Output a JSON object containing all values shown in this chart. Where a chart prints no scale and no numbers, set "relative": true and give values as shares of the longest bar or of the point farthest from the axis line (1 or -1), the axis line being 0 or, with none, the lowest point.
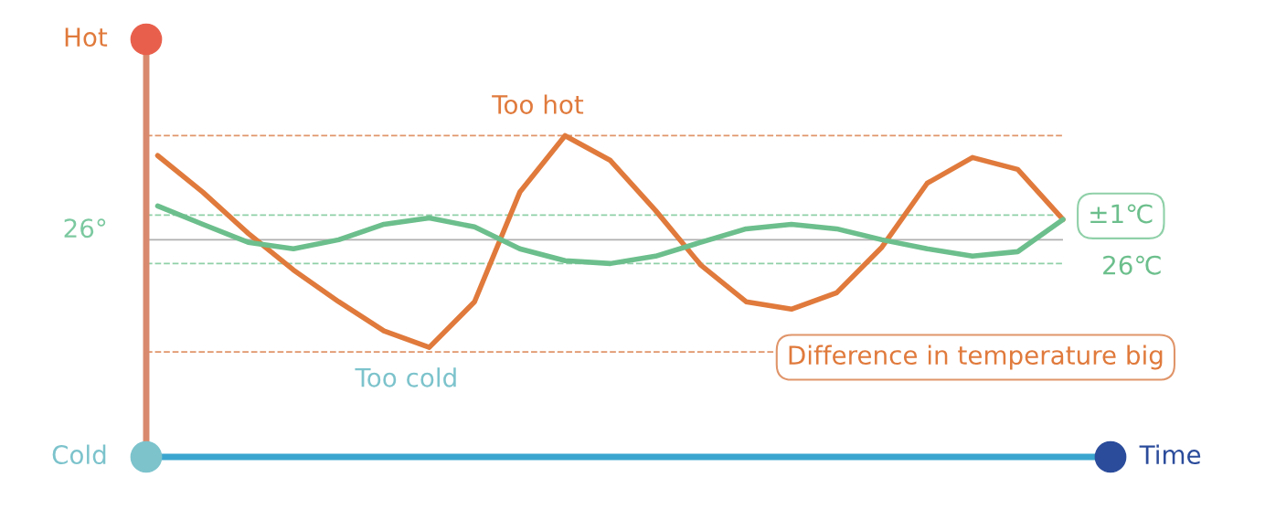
{
  "chart_data": {
    "type": "line",
    "relative": true,
    "categories": [
      null,
      null,
      null,
      null,
      null,
      null,
      null,
      null,
      null,
      null,
      null,
      null,
      null,
      null,
      null,
      null,
      null,
      null,
      null,
      null,
      null
    ],
    "series": [
      {
        "color": "#e07a3c",
        "values": [
          0.938,
          0.824,
          0.696,
          0.582,
          0.483,
          0.392,
          0.341,
          0.483,
          0.824,
          1.0,
          0.923,
          0.767,
          0.597,
          0.483,
          0.46,
          0.511,
          0.653,
          0.852,
          0.932,
          0.895,
          0.739
        ]
      },
      {
        "color": "#6cbf8c",
        "values": [
          0.781,
          0.724,
          0.668,
          0.648,
          0.676,
          0.724,
          0.744,
          0.716,
          0.648,
          0.611,
          0.602,
          0.625,
          0.668,
          0.71,
          0.724,
          0.71,
          0.676,
          0.648,
          0.625,
          0.639,
          0.739
        ]
      }
    ],
    "ref_lines": [
      {
        "axis": "y",
        "value": 1.0,
        "color": "#e0956a",
        "line_style": "dashed"
      },
      {
        "axis": "y",
        "value": 0.327,
        "color": "#e0956a",
        "line_style": "dashed"
      },
      {
        "axis": "y",
        "value": 0.753,
        "color": "#8fd0a8",
        "line_style": "dashed"
      },
      {
        "axis": "y",
        "value": 0.602,
        "color": "#8fd0a8",
        "line_style": "dashed"
      },
      {
        "axis": "y",
        "value": 0.676,
        "color": "#b0b0b0",
        "line_style": "solid"
      }
    ],
    "annotations": [
      "Hot",
      "Cold",
      "Time",
      "Too hot",
      "Too cold",
      "±1℃",
      "26℃",
      "Difference in temperature big",
      "26°"
    ],
    "legend": false,
    "marker": "none",
    "line_style": "solid"
  }
}
